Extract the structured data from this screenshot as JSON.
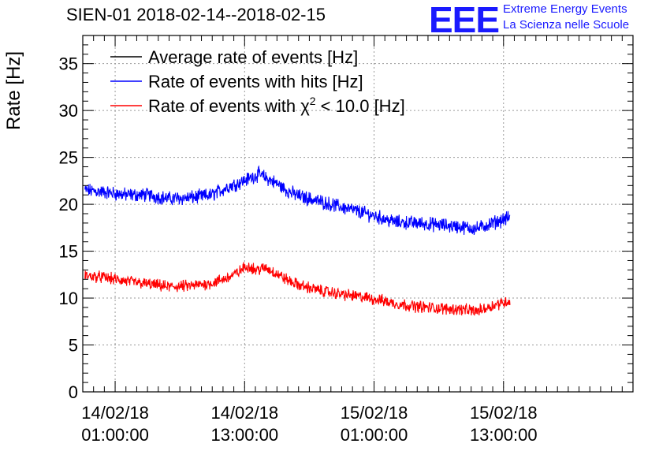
{
  "chart_data": {
    "type": "line",
    "title": "SIEN-01 2018-02-14--2018-02-15",
    "ylabel": "Rate [Hz]",
    "xlabel": "",
    "ylim": [
      0,
      38
    ],
    "yticks": [
      0,
      5,
      10,
      15,
      20,
      25,
      30,
      35
    ],
    "grid": true,
    "legend_position": "top-left",
    "x_unit": "hours since 2018-02-13 22:00",
    "xlim": [
      0,
      51
    ],
    "xticks": [
      {
        "x": 3,
        "line1": "14/02/18",
        "line2": "01:00:00"
      },
      {
        "x": 15,
        "line1": "14/02/18",
        "line2": "13:00:00"
      },
      {
        "x": 27,
        "line1": "15/02/18",
        "line2": "01:00:00"
      },
      {
        "x": 39,
        "line1": "15/02/18",
        "line2": "13:00:00"
      }
    ],
    "series": [
      {
        "name": "Average rate of events [Hz]",
        "color": "#000000",
        "x": [],
        "values": []
      },
      {
        "name": "Rate of events with hits [Hz]",
        "color": "#0000ff",
        "x": [
          0.2,
          2,
          4,
          6,
          8,
          10,
          12,
          13.5,
          14.5,
          15.5,
          16.3,
          17,
          18,
          19,
          20,
          22,
          24,
          26,
          27.5,
          29,
          31,
          33,
          35,
          36.5,
          37.5,
          38.5,
          39.6
        ],
        "values": [
          21.5,
          21.3,
          21.0,
          21.0,
          20.6,
          20.7,
          21.0,
          21.9,
          22.3,
          22.8,
          23.2,
          22.8,
          22.2,
          21.4,
          20.9,
          20.3,
          19.7,
          19.1,
          18.6,
          18.1,
          18.0,
          17.8,
          17.6,
          17.4,
          17.8,
          18.2,
          18.6
        ],
        "noise": 0.6
      },
      {
        "name": "Rate of events with χ² < 10.0 [Hz]",
        "legend_text_main": "Rate of events with χ",
        "legend_superscript": "2",
        "legend_text_tail": " < 10.0 [Hz]",
        "color": "#ff0000",
        "x": [
          0.2,
          2,
          4,
          6,
          8,
          10,
          12,
          13.5,
          14.5,
          15,
          15.5,
          16,
          16.5,
          17,
          18,
          19,
          20,
          22,
          24,
          26,
          27.5,
          29,
          31,
          33,
          35,
          36.5,
          37.5,
          38.5,
          39.6
        ],
        "values": [
          12.4,
          12.2,
          11.8,
          11.5,
          11.2,
          11.3,
          11.6,
          12.2,
          12.8,
          13.3,
          13.4,
          13.0,
          13.1,
          13.2,
          12.6,
          11.9,
          11.4,
          10.8,
          10.4,
          10.1,
          9.8,
          9.4,
          9.1,
          8.9,
          8.8,
          8.6,
          9.0,
          9.4,
          9.7
        ],
        "noise": 0.5
      }
    ]
  },
  "logo": {
    "mark": "EEE",
    "line1": "Extreme Energy Events",
    "line2": "La Scienza nelle Scuole"
  }
}
